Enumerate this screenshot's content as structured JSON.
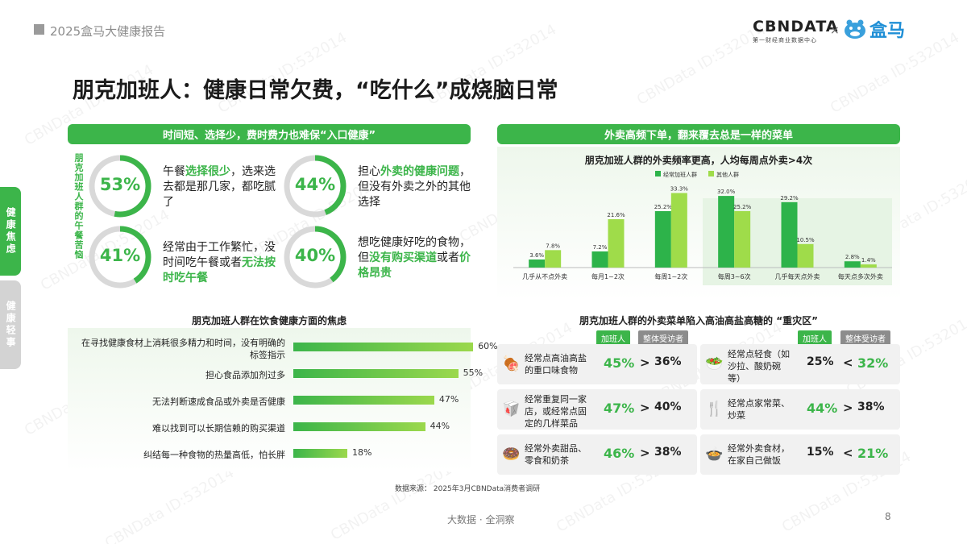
{
  "header": {
    "report_title": "2025盒马大健康报告"
  },
  "logos": {
    "cbn": "CBNDATA",
    "cbn_sub": "第一财经商业数据中心",
    "times": "×",
    "hema": "盒马"
  },
  "title": "朋克加班人：健康日常欠费，“吃什么”成烧脑日常",
  "side_tabs": [
    {
      "label": "健康焦虑",
      "active": true
    },
    {
      "label": "健康轻事",
      "active": false
    }
  ],
  "left_panel": {
    "heading": "时间短、选择少，费时费力也难保“入口健康”",
    "vertical_label": "朋克加班人群的午餐苦恼",
    "stats": [
      {
        "pct": "53%",
        "value": 53,
        "pre": "午餐",
        "hl": "选择很少",
        "post": "，选来选去都是那几家，都吃腻了"
      },
      {
        "pct": "44%",
        "value": 44,
        "pre": "担心",
        "hl": "外卖的健康问题",
        "post": "，但没有外卖之外的其他选择"
      },
      {
        "pct": "41%",
        "value": 41,
        "pre": "经常由于工作繁忙，没时间吃午餐或者",
        "hl": "无法按时吃午餐",
        "post": ""
      },
      {
        "pct": "40%",
        "value": 40,
        "pre": "想吃健康好吃的食物，但",
        "hl": "没有购买渠道",
        "post": "或者",
        "hl2": "价格昂贵"
      }
    ]
  },
  "anxiety_chart": {
    "title": "朋克加班人群在饮食健康方面的焦虑",
    "items": [
      {
        "label": "在寻找健康食材上消耗很多精力和时间，没有明确的标签指示",
        "value": 60,
        "value_label": "60%"
      },
      {
        "label": "担心食品添加剂过多",
        "value": 55,
        "value_label": "55%"
      },
      {
        "label": "无法判断速成食品或外卖是否健康",
        "value": 47,
        "value_label": "47%"
      },
      {
        "label": "难以找到可以长期信赖的购买渠道",
        "value": 44,
        "value_label": "44%"
      },
      {
        "label": "纠结每一种食物的热量高低，怕长胖",
        "value": 18,
        "value_label": "18%"
      }
    ]
  },
  "right_panel": {
    "heading": "外卖高频下单，翻来覆去总是一样的菜单"
  },
  "chart_data": {
    "type": "bar",
    "title": "朋克加班人群的外卖频率更高，人均每周点外卖>4次",
    "categories": [
      "几乎从不点外卖",
      "每月1~2次",
      "每周1~2次",
      "每周3~6次",
      "几乎每天点外卖",
      "每天点多次外卖"
    ],
    "series": [
      {
        "name": "经常加班人群",
        "values": [
          3.6,
          7.2,
          25.2,
          32.0,
          29.2,
          2.8
        ],
        "labels": [
          "3.6%",
          "7.2%",
          "25.2%",
          "32.0%",
          "29.2%",
          "2.8%"
        ]
      },
      {
        "name": "其他人群",
        "values": [
          7.8,
          21.6,
          33.3,
          25.2,
          10.5,
          1.4
        ],
        "labels": [
          "7.8%",
          "21.6%",
          "33.3%",
          "25.2%",
          "10.5%",
          "1.4%"
        ]
      }
    ],
    "ylim": [
      0,
      36
    ],
    "legend": "top-center",
    "highlight_range": [
      "每周3~6次",
      "每天点多次外卖"
    ],
    "colors": {
      "series1": "#2db34a",
      "series2": "#9fdc4a",
      "highlight_bg": "#e6f4e4"
    }
  },
  "disaster": {
    "title": "朋克加班人群的外卖菜单陷入高油高盐高糖的 “重灾区”",
    "tag_a": "加班人",
    "tag_b": "整体受访者",
    "left_rows": [
      {
        "icon": "meat-icon",
        "text": "经常点高油高盐的重口味食物",
        "a": "45%",
        "op": ">",
        "b": "36%"
      },
      {
        "icon": "takeout-box-icon",
        "text": "经常重复同一家店，或经常点固定的几样菜品",
        "a": "47%",
        "op": ">",
        "b": "40%"
      },
      {
        "icon": "donut-icon",
        "text": "经常外卖甜品、零食和奶茶",
        "a": "46%",
        "op": ">",
        "b": "38%"
      }
    ],
    "right_rows": [
      {
        "icon": "salad-bowl-icon",
        "text": "经常点轻食（如沙拉、酸奶碗等）",
        "a": "25%",
        "op": "<",
        "b": "32%"
      },
      {
        "icon": "fork-plate-icon",
        "text": "经常点家常菜、炒菜",
        "a": "44%",
        "op": ">",
        "b": "38%"
      },
      {
        "icon": "cooking-pot-icon",
        "text": "经常外卖食材，在家自己做饭",
        "a": "15%",
        "op": "<",
        "b": "21%"
      }
    ]
  },
  "source": "数据来源：  2025年3月CBNData消费者调研",
  "footer": {
    "center": "大数据 · 全洞察",
    "page": "8"
  },
  "watermark": "CBNData ID:532014",
  "colors": {
    "brand_green": "#3cb54a",
    "light_green": "#9bd84c",
    "gray_tab": "#d3d3d3"
  }
}
